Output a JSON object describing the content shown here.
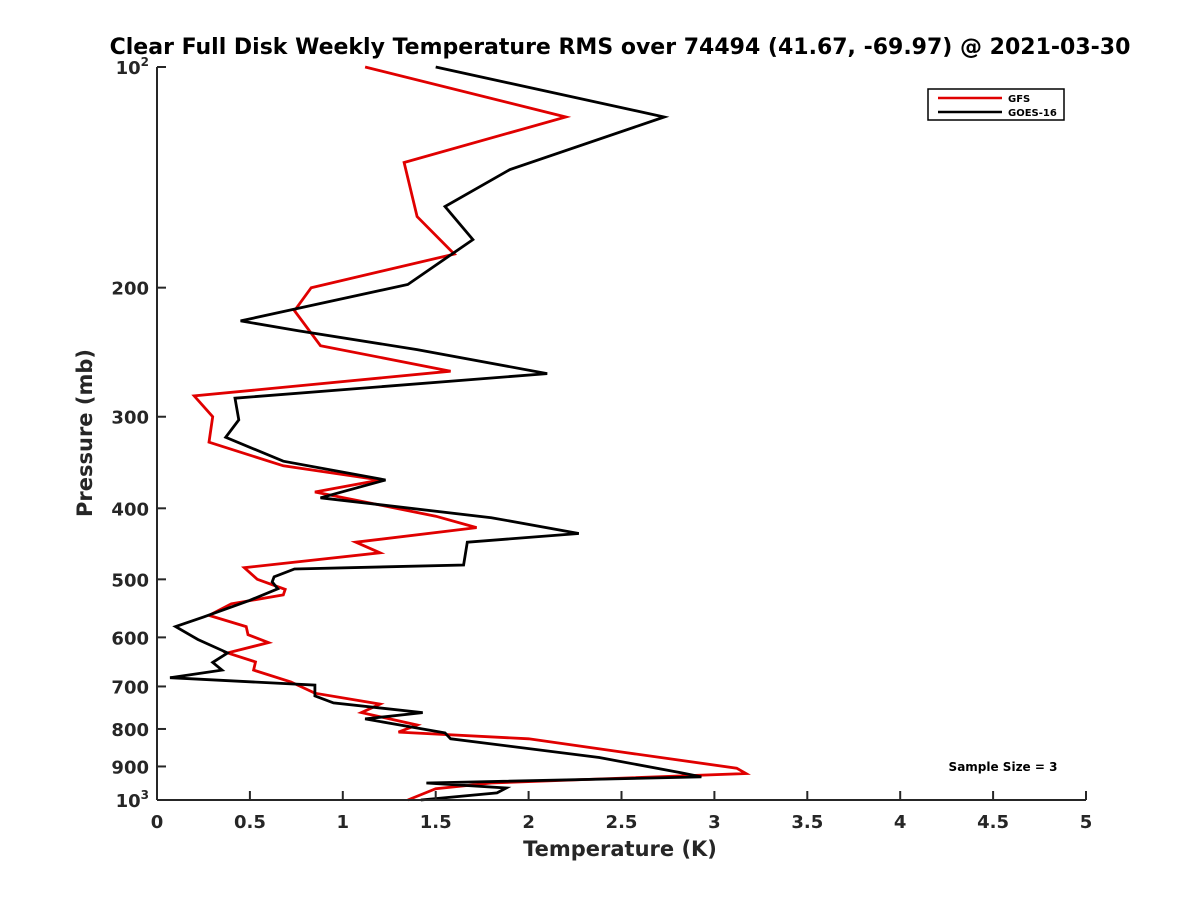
{
  "chart_data": {
    "type": "line",
    "title": "Clear Full Disk Weekly Temperature RMS over 74494 (41.67, -69.97) @ 2021-03-30",
    "xlabel": "Temperature (K)",
    "ylabel": "Pressure (mb)",
    "xlim": [
      0,
      5
    ],
    "ylim": [
      100,
      1000
    ],
    "yscale": "log",
    "y_reversed": true,
    "grid": false,
    "legend_position": "top-right",
    "x_ticks": [
      "0",
      "0.5",
      "1",
      "1.5",
      "2",
      "2.5",
      "3",
      "3.5",
      "4",
      "4.5",
      "5"
    ],
    "x_tick_values": [
      0,
      0.5,
      1,
      1.5,
      2,
      2.5,
      3,
      3.5,
      4,
      4.5,
      5
    ],
    "y_ticks": [
      {
        "value": 100,
        "base": "10",
        "exp": "2"
      },
      {
        "value": 200,
        "label": "200"
      },
      {
        "value": 300,
        "label": "300"
      },
      {
        "value": 400,
        "label": "400"
      },
      {
        "value": 500,
        "label": "500"
      },
      {
        "value": 600,
        "label": "600"
      },
      {
        "value": 700,
        "label": "700"
      },
      {
        "value": 800,
        "label": "800"
      },
      {
        "value": 900,
        "label": "900"
      },
      {
        "value": 1000,
        "base": "10",
        "exp": "3"
      }
    ],
    "annotation": "Sample Size = 3",
    "series": [
      {
        "name": "GFS",
        "color": "#e00000",
        "points": [
          [
            1.12,
            100
          ],
          [
            2.2,
            117
          ],
          [
            1.33,
            135
          ],
          [
            1.4,
            160
          ],
          [
            1.6,
            180
          ],
          [
            0.83,
            200
          ],
          [
            0.74,
            215
          ],
          [
            0.88,
            240
          ],
          [
            1.58,
            260
          ],
          [
            0.2,
            281
          ],
          [
            0.3,
            300
          ],
          [
            0.28,
            325
          ],
          [
            0.68,
            350
          ],
          [
            1.2,
            366
          ],
          [
            0.85,
            380
          ],
          [
            1.5,
            410
          ],
          [
            1.72,
            425
          ],
          [
            1.07,
            445
          ],
          [
            1.2,
            460
          ],
          [
            0.47,
            482
          ],
          [
            0.54,
            500
          ],
          [
            0.69,
            516
          ],
          [
            0.68,
            525
          ],
          [
            0.4,
            540
          ],
          [
            0.28,
            560
          ],
          [
            0.48,
            580
          ],
          [
            0.49,
            595
          ],
          [
            0.6,
            610
          ],
          [
            0.38,
            630
          ],
          [
            0.53,
            648
          ],
          [
            0.52,
            665
          ],
          [
            0.72,
            690
          ],
          [
            0.85,
            715
          ],
          [
            1.2,
            740
          ],
          [
            1.1,
            760
          ],
          [
            1.4,
            790
          ],
          [
            1.3,
            808
          ],
          [
            2.0,
            825
          ],
          [
            2.5,
            860
          ],
          [
            3.12,
            905
          ],
          [
            3.17,
            920
          ],
          [
            1.8,
            948
          ],
          [
            1.5,
            965
          ],
          [
            1.35,
            1000
          ]
        ]
      },
      {
        "name": "GOES-16",
        "color": "#000000",
        "points": [
          [
            1.5,
            100
          ],
          [
            2.73,
            117
          ],
          [
            1.9,
            138
          ],
          [
            1.55,
            155
          ],
          [
            1.7,
            172
          ],
          [
            1.35,
            198
          ],
          [
            0.45,
            222
          ],
          [
            0.76,
            229
          ],
          [
            1.4,
            243
          ],
          [
            2.1,
            262
          ],
          [
            0.42,
            283
          ],
          [
            0.44,
            303
          ],
          [
            0.37,
            320
          ],
          [
            0.68,
            345
          ],
          [
            1.23,
            366
          ],
          [
            0.88,
            387
          ],
          [
            1.8,
            412
          ],
          [
            2.27,
            433
          ],
          [
            1.67,
            445
          ],
          [
            1.65,
            478
          ],
          [
            0.74,
            484
          ],
          [
            0.63,
            496
          ],
          [
            0.62,
            504
          ],
          [
            0.65,
            515
          ],
          [
            0.5,
            534
          ],
          [
            0.25,
            563
          ],
          [
            0.1,
            580
          ],
          [
            0.22,
            604
          ],
          [
            0.38,
            630
          ],
          [
            0.3,
            649
          ],
          [
            0.35,
            665
          ],
          [
            0.07,
            681
          ],
          [
            0.85,
            697
          ],
          [
            0.85,
            721
          ],
          [
            0.95,
            737
          ],
          [
            1.43,
            760
          ],
          [
            1.12,
            775
          ],
          [
            1.55,
            810
          ],
          [
            1.58,
            825
          ],
          [
            2.38,
            875
          ],
          [
            2.82,
            918
          ],
          [
            2.93,
            930
          ],
          [
            1.45,
            948
          ],
          [
            1.88,
            963
          ],
          [
            1.83,
            978
          ],
          [
            1.42,
            1000
          ]
        ]
      }
    ]
  }
}
